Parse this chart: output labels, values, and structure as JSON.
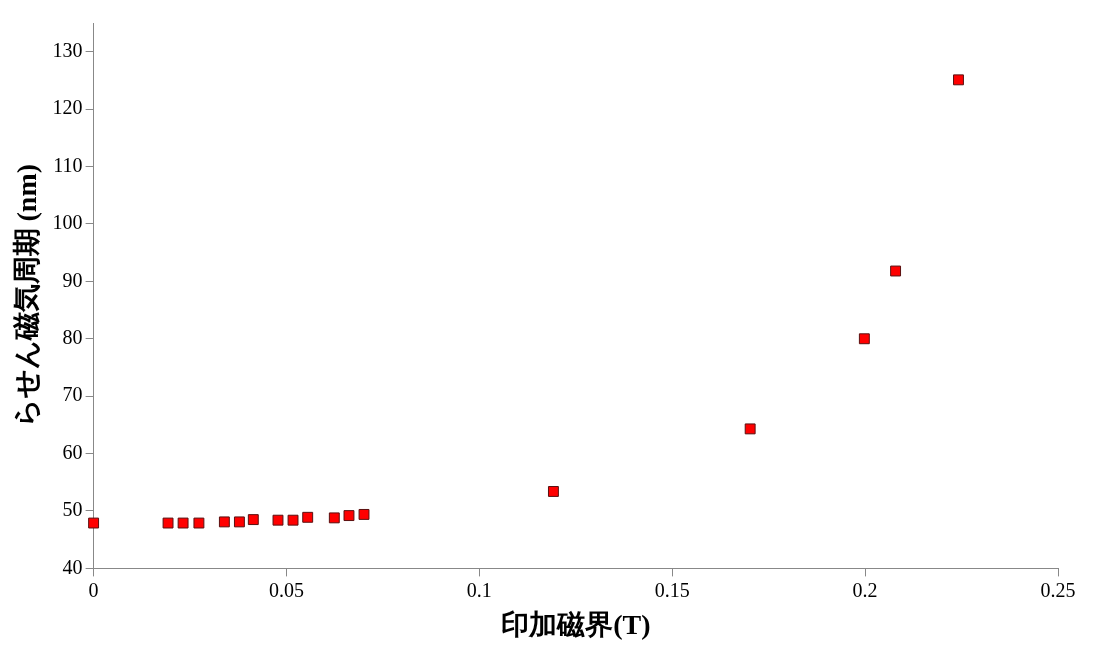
{
  "chart_data": {
    "type": "scatter",
    "xlabel": "印加磁界(T)",
    "ylabel": "らせん磁気周期 (nm)",
    "x": [
      0,
      0.0193,
      0.0232,
      0.0273,
      0.0339,
      0.0378,
      0.0414,
      0.0478,
      0.0517,
      0.0555,
      0.0624,
      0.0662,
      0.0701,
      0.1192,
      0.1702,
      0.1998,
      0.2079,
      0.2242
    ],
    "series": [
      {
        "color": "#ff0000",
        "values": [
          47.9,
          47.9,
          47.9,
          47.9,
          48.1,
          48.1,
          48.5,
          48.4,
          48.4,
          48.9,
          48.8,
          49.2,
          49.4,
          53.4,
          64.3,
          80.0,
          91.8,
          125.1
        ]
      }
    ],
    "xlim": [
      0,
      0.25
    ],
    "xticks": [
      0,
      0.05,
      0.1,
      0.15,
      0.2,
      0.25
    ],
    "ylim": [
      40,
      135
    ],
    "yticks": [
      40,
      50,
      60,
      70,
      80,
      90,
      100,
      110,
      120,
      130
    ],
    "grid": false,
    "legend": false,
    "marker": "square"
  }
}
